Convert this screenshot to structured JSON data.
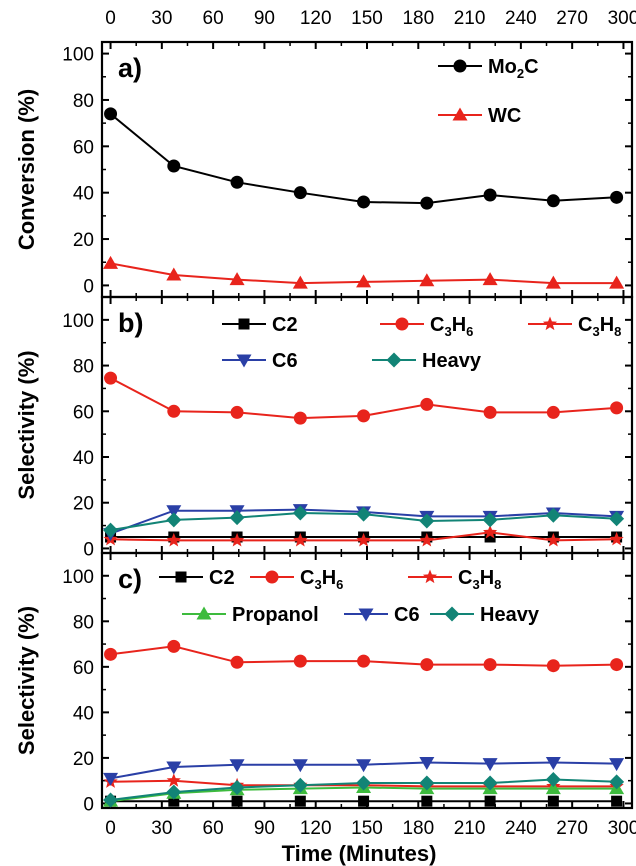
{
  "colors": {
    "Mo2C": "#000000",
    "WC": "#e8241c",
    "C2": "#000000",
    "C3H6": "#e8241c",
    "C3H8": "#e8241c",
    "C6": "#2a3fa6",
    "Heavy": "#128476",
    "Propanol": "#3dbb3d"
  },
  "shared_x": {
    "ticks": [
      "0",
      "30",
      "60",
      "90",
      "120",
      "150",
      "180",
      "210",
      "240",
      "270",
      "300"
    ],
    "xlabel": "Time (Minutes)",
    "xlim": [
      -5,
      305
    ]
  },
  "chart_data": [
    {
      "type": "line",
      "panel_label": "a)",
      "ylabel": "Conversion (%)",
      "ylim": [
        -5,
        105
      ],
      "yticks": [
        "0",
        "20",
        "40",
        "60",
        "80",
        "100"
      ],
      "x": [
        0,
        37,
        74,
        111,
        148,
        185,
        222,
        259,
        296
      ],
      "legend_placement": "top-right",
      "series": [
        {
          "name_main": "Mo",
          "name_sub": "2",
          "name_tail": "C",
          "marker": "circle",
          "color_key": "Mo2C",
          "values": [
            74,
            51.5,
            44.5,
            40,
            36,
            35.5,
            39,
            36.5,
            38
          ]
        },
        {
          "name_main": "WC",
          "name_sub": "",
          "name_tail": "",
          "marker": "triangle",
          "color_key": "WC",
          "values": [
            9.5,
            4.5,
            2.5,
            1,
            1.5,
            2,
            2.5,
            1,
            1
          ]
        }
      ]
    },
    {
      "type": "line",
      "panel_label": "b)",
      "ylabel": "Selectivity (%)",
      "ylim": [
        -2,
        110
      ],
      "yticks": [
        "0",
        "20",
        "40",
        "60",
        "80",
        "100"
      ],
      "x": [
        0,
        37,
        74,
        111,
        148,
        185,
        222,
        259,
        296
      ],
      "legend_placement": "top",
      "series": [
        {
          "name_main": "C2",
          "name_sub": "",
          "name_tail": "",
          "marker": "square",
          "color_key": "C2",
          "values": [
            5,
            5,
            5,
            5,
            5,
            5,
            5,
            5,
            5
          ]
        },
        {
          "name_main": "C",
          "name_sub": "3",
          "name_tail": "H",
          "name_sub2": "6",
          "marker": "circle",
          "color_key": "C3H6",
          "values": [
            74.5,
            60,
            59.5,
            57,
            58,
            63,
            59.5,
            59.5,
            61.5
          ]
        },
        {
          "name_main": "C",
          "name_sub": "3",
          "name_tail": "H",
          "name_sub2": "8",
          "marker": "star",
          "color_key": "C3H8",
          "values": [
            4,
            3.5,
            3.5,
            3.5,
            3.5,
            3.5,
            7,
            3.5,
            4
          ]
        },
        {
          "name_main": "C6",
          "name_sub": "",
          "name_tail": "",
          "marker": "triangle-down",
          "color_key": "C6",
          "values": [
            6.5,
            16.5,
            16.5,
            17,
            16,
            14,
            14,
            15.5,
            14
          ]
        },
        {
          "name_main": "Heavy",
          "name_sub": "",
          "name_tail": "",
          "marker": "diamond",
          "color_key": "Heavy",
          "values": [
            8,
            12.5,
            13.5,
            15.5,
            15,
            12,
            12.5,
            14.5,
            13
          ]
        }
      ]
    },
    {
      "type": "line",
      "panel_label": "c)",
      "ylabel": "Selectivity (%)",
      "ylim": [
        -2,
        110
      ],
      "yticks": [
        "0",
        "20",
        "40",
        "60",
        "80",
        "100"
      ],
      "x": [
        0,
        37,
        74,
        111,
        148,
        185,
        222,
        259,
        296
      ],
      "legend_placement": "top",
      "series": [
        {
          "name_main": "C2",
          "name_sub": "",
          "name_tail": "",
          "marker": "square",
          "color_key": "C2",
          "values": [
            1,
            1,
            1,
            1,
            1,
            1,
            1,
            1,
            1
          ]
        },
        {
          "name_main": "C",
          "name_sub": "3",
          "name_tail": "H",
          "name_sub2": "6",
          "marker": "circle",
          "color_key": "C3H6",
          "values": [
            65.5,
            69,
            62,
            62.5,
            62.5,
            61,
            61,
            60.5,
            61
          ]
        },
        {
          "name_main": "C",
          "name_sub": "3",
          "name_tail": "H",
          "name_sub2": "8",
          "marker": "star",
          "color_key": "C3H8",
          "values": [
            9.5,
            10,
            8,
            8,
            8,
            7.5,
            7.5,
            7.5,
            7.5
          ]
        },
        {
          "name_main": "Propanol",
          "name_sub": "",
          "name_tail": "",
          "marker": "triangle",
          "color_key": "Propanol",
          "values": [
            1,
            4.5,
            6,
            6.5,
            7,
            6.5,
            6.5,
            6.5,
            6.5
          ]
        },
        {
          "name_main": "C6",
          "name_sub": "",
          "name_tail": "",
          "marker": "triangle-down",
          "color_key": "C6",
          "values": [
            11,
            16,
            17,
            17,
            17,
            18,
            17.5,
            18,
            17.5
          ]
        },
        {
          "name_main": "Heavy",
          "name_sub": "",
          "name_tail": "",
          "marker": "diamond",
          "color_key": "Heavy",
          "values": [
            1.5,
            5,
            7,
            8,
            9,
            9,
            9,
            10.5,
            9.5
          ]
        }
      ]
    }
  ]
}
